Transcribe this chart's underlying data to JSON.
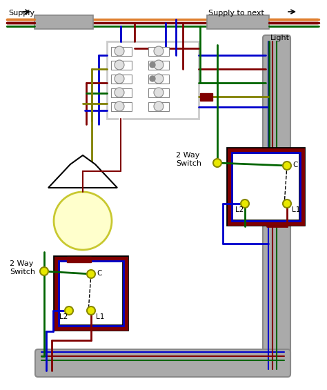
{
  "bg": "#ffffff",
  "blue": "#0000cc",
  "brown": "#800000",
  "dkgrn": "#006400",
  "ylwgrn": "#808000",
  "gray": "#aaaaaa",
  "dgray": "#888888",
  "black": "#000000",
  "white": "#ffffff",
  "yellow": "#e8e800",
  "orange": "#e08030",
  "lt_yellow": "#ffffcc",
  "supply": "Supply",
  "supply_next": "Supply to next",
  "light_lbl": "Light",
  "sw_lbl1": "2 Way",
  "sw_lbl2": "Switch",
  "C": "C",
  "L1": "L1",
  "L2": "L2"
}
